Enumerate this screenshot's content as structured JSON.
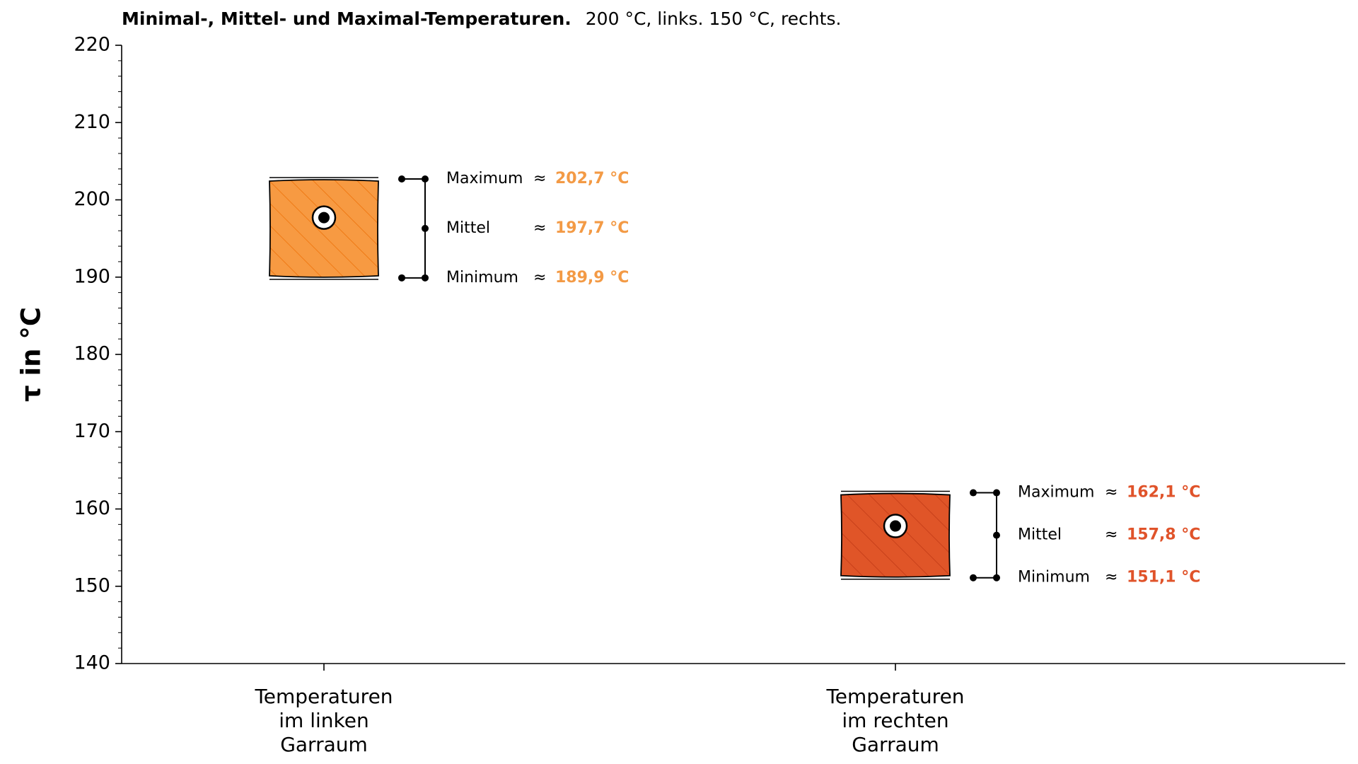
{
  "chart_data": {
    "type": "range",
    "title": "Minimal-, Mittel- und Maximal-Temperaturen.",
    "subtitle": "200 °C, links. 150 °C, rechts.",
    "ylabel": "τ in °C",
    "categories": [
      "Temperaturen\nim linken\nGarraum",
      "Temperaturen\nim rechten\nGarraum"
    ],
    "colors": [
      "#f79a42",
      "#e05528"
    ],
    "hatch_colors": [
      "#ef7a16",
      "#c8401a"
    ],
    "label_colors": [
      "#f39a45",
      "#e0532a"
    ],
    "approx_sign": "≈",
    "series": [
      {
        "name": "Maximum",
        "values": [
          202.7,
          162.1
        ],
        "value_labels": [
          "202,7 °C",
          "162,1 °C"
        ]
      },
      {
        "name": "Mittel",
        "values": [
          197.7,
          157.8
        ],
        "value_labels": [
          "197,7 °C",
          "157,8 °C"
        ]
      },
      {
        "name": "Minimum",
        "values": [
          189.9,
          151.1
        ],
        "value_labels": [
          "189,9 °C",
          "151,1 °C"
        ]
      }
    ],
    "ylim": [
      140,
      220
    ],
    "yticks": [
      140,
      150,
      160,
      170,
      180,
      190,
      200,
      210,
      220
    ],
    "minor_tick_step": 2
  }
}
